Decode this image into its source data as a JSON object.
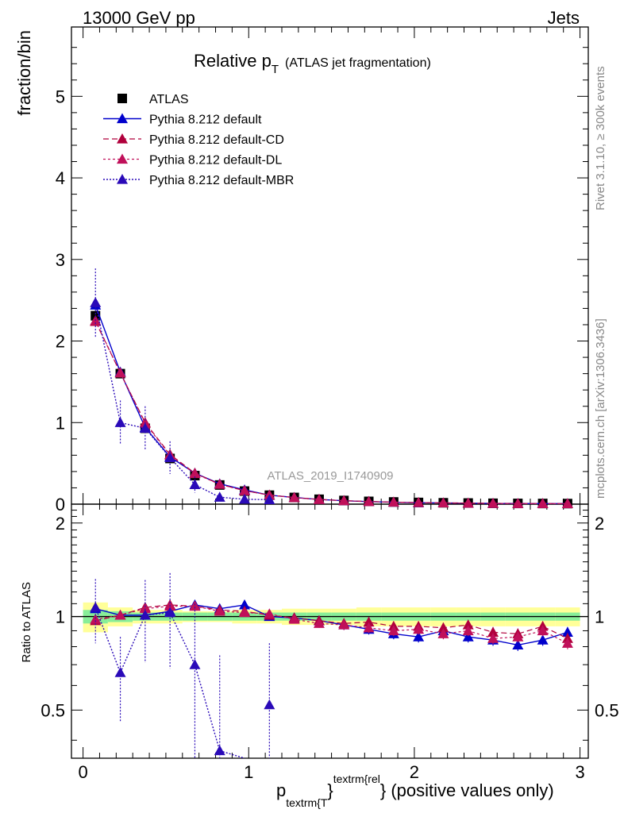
{
  "header": {
    "left": "13000 GeV pp",
    "right": "Jets"
  },
  "side_labels": {
    "rivet": "Rivet 3.1.10, ≥ 300k events",
    "mcplots": "mcplots.cern.ch [arXiv:1306.3436]"
  },
  "chart_data": {
    "type": "scatter",
    "title_main": "Relative p",
    "title_sub": "T",
    "title_paren": "(ATLAS jet fragmentation)",
    "watermark": "ATLAS_2019_I1740909",
    "ylabel": "fraction/bin",
    "ratio_ylabel": "Ratio to ATLAS",
    "xlabel_p": "p",
    "xlabel_sub": "textrm{T",
    "xlabel_brace": "}",
    "xlabel_sup": "textrm{rel",
    "xlabel_rest": "} (positive values only)",
    "xlim": [
      -0.07,
      3.05
    ],
    "ylim": [
      0,
      5.85
    ],
    "ratio_ylim": [
      0.35,
      2.3
    ],
    "x_ticks": [
      "0",
      "1",
      "2",
      "3"
    ],
    "y_ticks": [
      "0",
      "1",
      "2",
      "3",
      "4",
      "5"
    ],
    "ratio_y_ticks": [
      "0.5",
      "1",
      "2"
    ],
    "x": [
      0.075,
      0.225,
      0.375,
      0.525,
      0.675,
      0.825,
      0.975,
      1.125,
      1.275,
      1.425,
      1.575,
      1.725,
      1.875,
      2.025,
      2.175,
      2.325,
      2.475,
      2.625,
      2.775,
      2.925
    ],
    "series": [
      {
        "name": "ATLAS",
        "color": "#000000",
        "values": [
          2.31,
          1.6,
          0.93,
          0.56,
          0.35,
          0.235,
          0.16,
          0.11,
          0.082,
          0.06,
          0.045,
          0.034,
          0.027,
          0.021,
          0.017,
          0.014,
          0.011,
          0.009,
          0.008,
          0.007
        ]
      },
      {
        "name": "Pythia 8.212 default",
        "color": "#0000cc",
        "values": [
          2.44,
          1.62,
          0.94,
          0.58,
          0.38,
          0.25,
          0.175,
          0.11,
          0.082,
          0.058,
          0.042,
          0.031,
          0.024,
          0.018,
          0.015,
          0.012,
          0.0093,
          0.0073,
          0.0067,
          0.0062
        ]
      },
      {
        "name": "Pythia 8.212 default-CD",
        "color": "#b0003c",
        "values": [
          2.24,
          1.61,
          1.0,
          0.61,
          0.38,
          0.245,
          0.165,
          0.111,
          0.081,
          0.058,
          0.043,
          0.033,
          0.025,
          0.02,
          0.016,
          0.013,
          0.0098,
          0.0079,
          0.0075,
          0.0059
        ]
      },
      {
        "name": "Pythia 8.212 default-DL",
        "color": "#c0105a",
        "values": [
          2.25,
          1.61,
          0.99,
          0.6,
          0.375,
          0.243,
          0.164,
          0.112,
          0.08,
          0.057,
          0.042,
          0.031,
          0.024,
          0.019,
          0.015,
          0.012,
          0.0093,
          0.0075,
          0.0072,
          0.0057
        ]
      },
      {
        "name": "Pythia 8.212 default-MBR",
        "color": "#2a0ab8",
        "values": [
          2.47,
          1.0,
          0.93,
          0.57,
          0.24,
          0.085,
          0.06,
          0.055
        ]
      }
    ],
    "ratio_series": [
      {
        "name": "Pythia 8.212 default",
        "values": [
          1.06,
          1.01,
          1.01,
          1.04,
          1.09,
          1.06,
          1.09,
          1.0,
          0.99,
          0.97,
          0.94,
          0.91,
          0.88,
          0.86,
          0.9,
          0.86,
          0.84,
          0.81,
          0.84,
          0.89
        ]
      },
      {
        "name": "Pythia 8.212 default-CD",
        "values": [
          0.97,
          1.01,
          1.07,
          1.09,
          1.08,
          1.05,
          1.04,
          1.01,
          0.99,
          0.97,
          0.95,
          0.96,
          0.93,
          0.93,
          0.92,
          0.94,
          0.89,
          0.88,
          0.93,
          0.85
        ]
      },
      {
        "name": "Pythia 8.212 default-DL",
        "values": [
          0.98,
          1.01,
          1.06,
          1.08,
          1.08,
          1.04,
          1.03,
          1.02,
          0.98,
          0.95,
          0.94,
          0.92,
          0.9,
          0.91,
          0.88,
          0.9,
          0.85,
          0.86,
          0.9,
          0.82
        ]
      },
      {
        "name": "Pythia 8.212 default-MBR",
        "values": [
          1.07,
          0.66,
          1.01,
          1.03,
          0.7,
          0.37,
          null,
          0.52
        ]
      }
    ],
    "ratio_bands": {
      "inner": [
        0.05,
        0.04,
        0.03,
        0.03,
        0.03,
        0.03,
        0.03,
        0.03,
        0.03,
        0.03,
        0.03,
        0.03,
        0.03,
        0.03,
        0.03,
        0.03,
        0.03,
        0.03,
        0.03,
        0.03
      ],
      "outer": [
        0.11,
        0.07,
        0.05,
        0.05,
        0.04,
        0.04,
        0.05,
        0.05,
        0.06,
        0.06,
        0.06,
        0.07,
        0.07,
        0.07,
        0.07,
        0.07,
        0.07,
        0.07,
        0.07,
        0.07
      ]
    },
    "mbr_ratio_err": [
      0.25,
      0.2,
      0.3,
      0.35,
      0.4,
      0.38,
      0,
      0.3
    ]
  }
}
